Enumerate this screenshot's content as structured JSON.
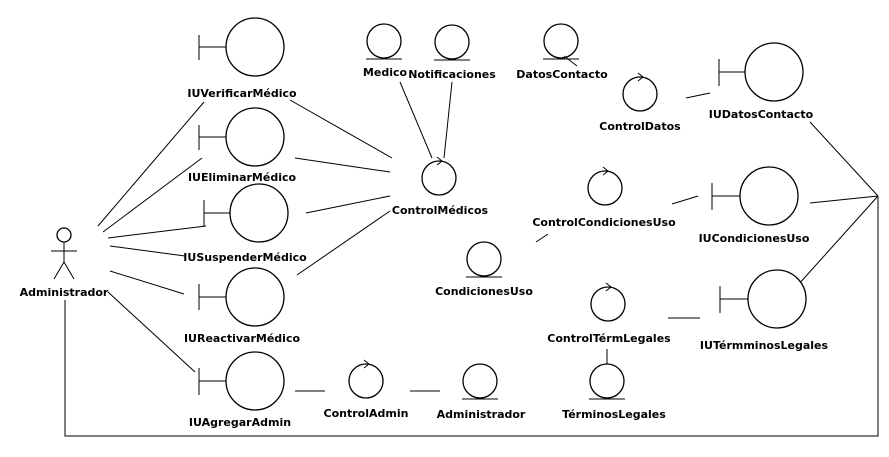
{
  "diagram": {
    "actor": {
      "label": "Administrador"
    },
    "boundaries": {
      "iu_verificar_medico": "IUVerificarMédico",
      "iu_eliminar_medico": "IUEliminarMédico",
      "iu_suspender_medico": "IUSuspenderMédico",
      "iu_reactivar_medico": "IUReactivarMédico",
      "iu_agregar_admin": "IUAgregarAdmin",
      "iu_datos_contacto": "IUDatosContacto",
      "iu_condiciones_uso": "IUCondicionesUso",
      "iu_terminos_legales": "IUTérmminosLegales"
    },
    "controls": {
      "control_medicos": "ControlMédicos",
      "control_admin": "ControlAdmin",
      "control_datos": "ControlDatos",
      "control_condiciones_uso": "ControlCondicionesUso",
      "control_term_legales": "ControlTérmLegales"
    },
    "entities": {
      "medico": "Medico",
      "notificaciones": "Notificaciones",
      "datos_contacto": "DatosContacto",
      "condiciones_uso": "CondicionesUso",
      "administrador": "Administrador",
      "terminos_legales": "TérminosLegales"
    }
  }
}
